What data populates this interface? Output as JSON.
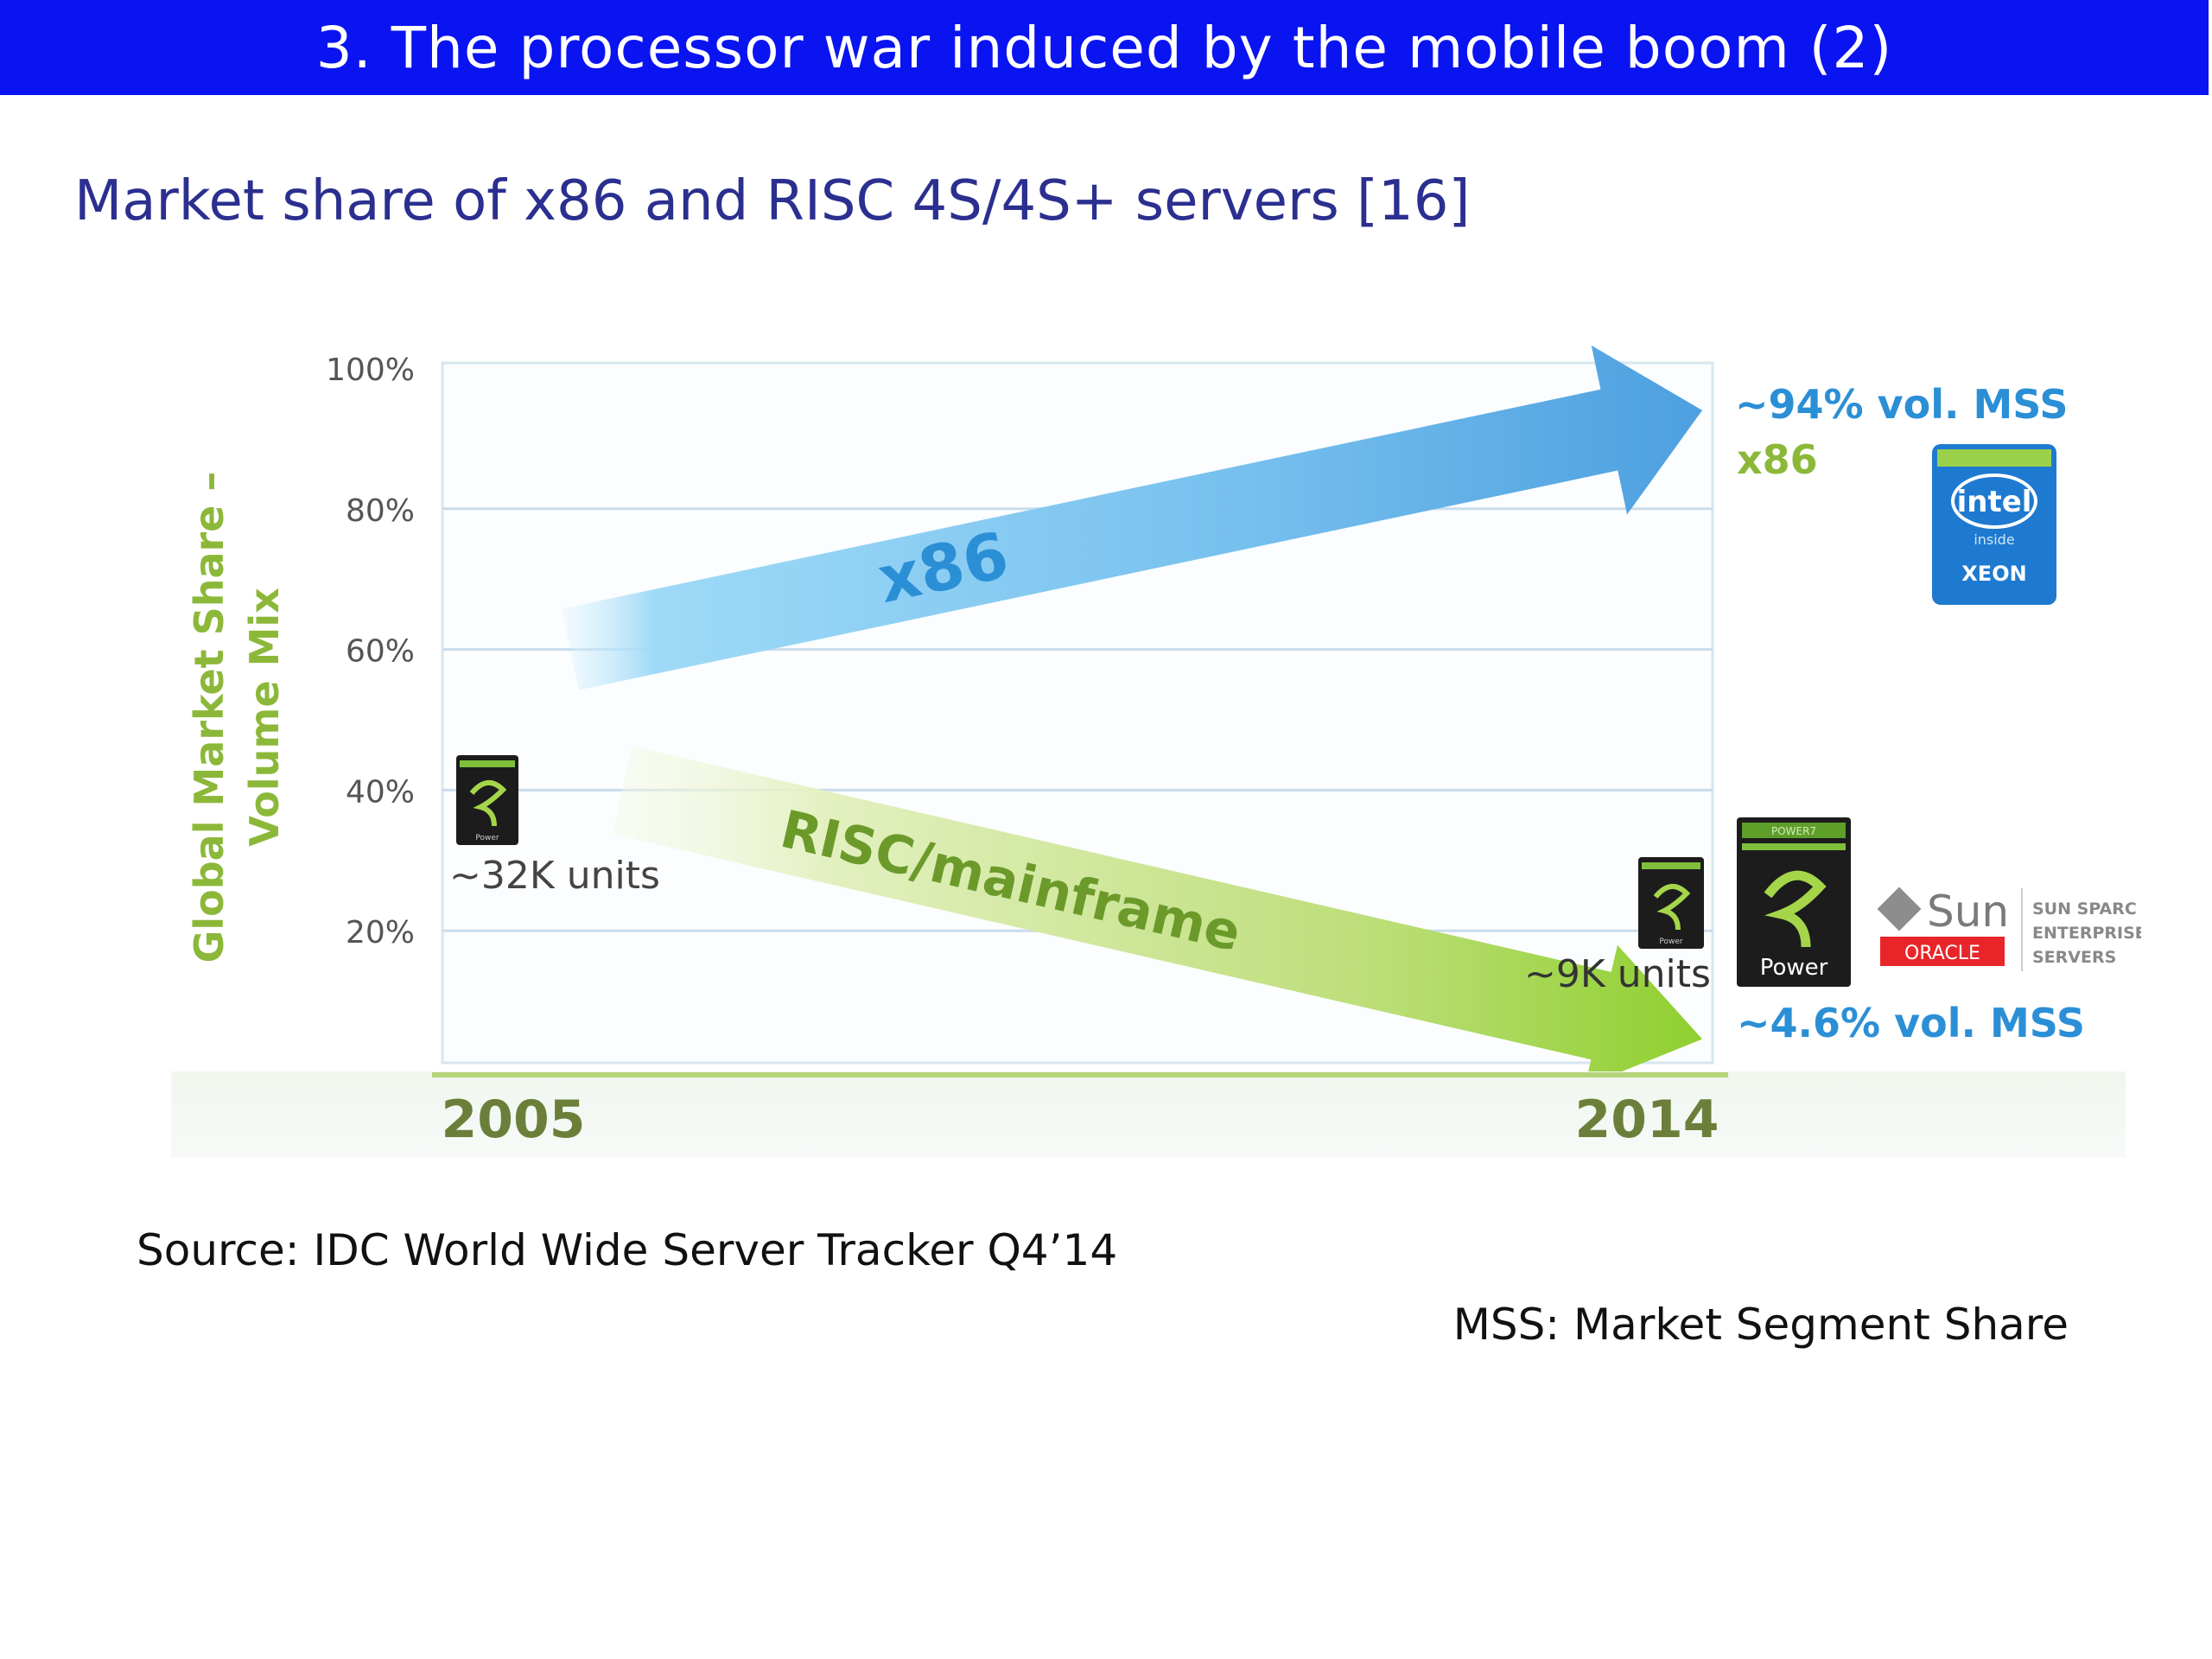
{
  "header": {
    "title": "3. The processor war induced by the mobile boom (2)",
    "subtitle": "Market share of x86 and RISC 4S/4S+ servers [16]"
  },
  "footer": {
    "source": "Source: IDC World Wide Server Tracker Q4’14",
    "mss_note": "MSS: Market Segment Share"
  },
  "chart_data": {
    "type": "line",
    "title": "",
    "ylabel": "Global Market Share – Volume Mix",
    "xlabel": "",
    "ylim": [
      0,
      100
    ],
    "y_ticks": [
      "100%",
      "80%",
      "60%",
      "40%",
      "20%"
    ],
    "categories": [
      "2005",
      "2014"
    ],
    "series": [
      {
        "name": "x86",
        "values": [
          60,
          94
        ],
        "color": "#5aaee8"
      },
      {
        "name": "RISC/mainframe",
        "values": [
          40,
          4.6
        ],
        "color": "#9ccc3c"
      }
    ],
    "annotations": {
      "x86_end_share": "~94% vol. MSS",
      "x86_end_label": "x86",
      "risc_end_share": "~4.6% vol. MSS",
      "risc_start_units": "~32K units",
      "risc_end_units": "~9K units"
    },
    "logos": {
      "intel_text": "intel",
      "intel_inside": "inside",
      "intel_product": "XEON",
      "power_text": "Power",
      "power_top": "POWER7",
      "sun_text": "Sun",
      "oracle_text": "ORACLE",
      "sparc_lines": [
        "SUN SPARC",
        "ENTERPRISE",
        "SERVERS"
      ]
    },
    "colors": {
      "y_label": "#8cb83a",
      "x86_text": "#2b8fd6",
      "risc_text": "#6b9a2a",
      "year_text": "#6b7f3a",
      "grid": "#c9dceb",
      "intel_blue": "#1e7ad0",
      "oracle_red": "#e8262a"
    }
  }
}
